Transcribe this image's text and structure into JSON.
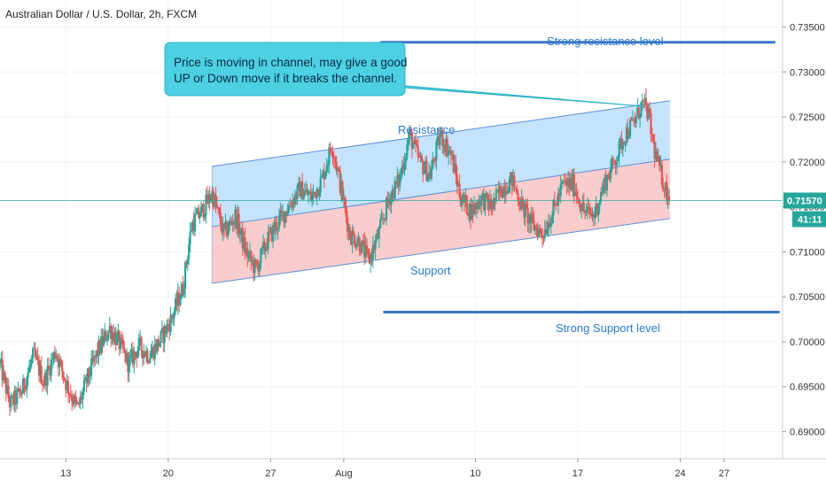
{
  "header": {
    "title": "Australian Dollar / U.S. Dollar, 2h, FXCM"
  },
  "chart_data": {
    "type": "candlestick",
    "title": "Australian Dollar / U.S. Dollar, 2h, FXCM",
    "x_ticks": [
      {
        "label": "13",
        "day": 13
      },
      {
        "label": "20",
        "day": 20
      },
      {
        "label": "27",
        "day": 27
      },
      {
        "label": "Aug",
        "day": 32
      },
      {
        "label": "10",
        "day": 41
      },
      {
        "label": "17",
        "day": 48
      },
      {
        "label": "24",
        "day": 55
      },
      {
        "label": "27",
        "day": 58
      }
    ],
    "xlim": [
      8.5,
      62
    ],
    "ylim": [
      0.687,
      0.738
    ],
    "y_ticks": [
      "0.73500",
      "0.73000",
      "0.72500",
      "0.72000",
      "0.71500",
      "0.71000",
      "0.70500",
      "0.70000",
      "0.69500",
      "0.69000"
    ],
    "y_tick_values": [
      0.735,
      0.73,
      0.725,
      0.72,
      0.715,
      0.71,
      0.705,
      0.7,
      0.695,
      0.69
    ],
    "grid": true,
    "current_price": {
      "label": "0.71570",
      "value": 0.7157,
      "countdown": "41:11"
    },
    "price_path": [
      [
        8.5,
        0.6975
      ],
      [
        9.2,
        0.693
      ],
      [
        10.0,
        0.6945
      ],
      [
        10.8,
        0.6985
      ],
      [
        11.5,
        0.6955
      ],
      [
        12.3,
        0.699
      ],
      [
        13.0,
        0.6955
      ],
      [
        13.8,
        0.6925
      ],
      [
        14.5,
        0.696
      ],
      [
        15.2,
        0.699
      ],
      [
        16.0,
        0.7015
      ],
      [
        16.6,
        0.7
      ],
      [
        17.3,
        0.6975
      ],
      [
        18.0,
        0.6995
      ],
      [
        18.7,
        0.6985
      ],
      [
        19.4,
        0.7
      ],
      [
        20.2,
        0.7025
      ],
      [
        21.0,
        0.706
      ],
      [
        21.6,
        0.713
      ],
      [
        22.3,
        0.7145
      ],
      [
        23.0,
        0.7165
      ],
      [
        23.8,
        0.712
      ],
      [
        24.6,
        0.714
      ],
      [
        25.3,
        0.71
      ],
      [
        26.0,
        0.708
      ],
      [
        26.7,
        0.711
      ],
      [
        27.4,
        0.713
      ],
      [
        28.2,
        0.715
      ],
      [
        29.0,
        0.717
      ],
      [
        29.8,
        0.716
      ],
      [
        30.5,
        0.718
      ],
      [
        31.2,
        0.722
      ],
      [
        31.7,
        0.718
      ],
      [
        32.4,
        0.712
      ],
      [
        33.1,
        0.711
      ],
      [
        33.7,
        0.709
      ],
      [
        34.4,
        0.712
      ],
      [
        35.1,
        0.716
      ],
      [
        35.8,
        0.718
      ],
      [
        36.5,
        0.723
      ],
      [
        37.2,
        0.72
      ],
      [
        37.9,
        0.7185
      ],
      [
        38.6,
        0.723
      ],
      [
        39.3,
        0.721
      ],
      [
        40.0,
        0.716
      ],
      [
        40.7,
        0.7145
      ],
      [
        41.4,
        0.716
      ],
      [
        42.1,
        0.715
      ],
      [
        42.8,
        0.717
      ],
      [
        43.5,
        0.718
      ],
      [
        44.2,
        0.715
      ],
      [
        44.9,
        0.713
      ],
      [
        45.6,
        0.712
      ],
      [
        46.3,
        0.7145
      ],
      [
        47.0,
        0.7175
      ],
      [
        47.7,
        0.7175
      ],
      [
        48.4,
        0.7145
      ],
      [
        49.1,
        0.714
      ],
      [
        49.8,
        0.7175
      ],
      [
        50.5,
        0.72
      ],
      [
        51.2,
        0.723
      ],
      [
        51.9,
        0.7245
      ],
      [
        52.4,
        0.7265
      ],
      [
        52.8,
        0.7255
      ],
      [
        53.2,
        0.7215
      ],
      [
        53.6,
        0.719
      ],
      [
        54.0,
        0.717
      ],
      [
        54.3,
        0.7157
      ]
    ],
    "channel": {
      "upper": [
        [
          23.0,
          0.7195
        ],
        [
          54.3,
          0.7268
        ]
      ],
      "middle": [
        [
          23.0,
          0.7128
        ],
        [
          54.3,
          0.7203
        ]
      ],
      "lower": [
        [
          23.0,
          0.7065
        ],
        [
          54.3,
          0.7137
        ]
      ]
    },
    "levels": [
      {
        "name": "resistance",
        "value": 0.7333,
        "x_range": [
          34.5,
          61.5
        ]
      },
      {
        "name": "support",
        "value": 0.7033,
        "x_range": [
          34.7,
          61.8
        ]
      }
    ],
    "annotations": {
      "resistance": "Resistance",
      "support": "Support",
      "strong_resistance": "Strong resistance level",
      "strong_support": "Strong Support level",
      "callout_line1": "Price is moving in channel, may give a good",
      "callout_line2": "UP or Down move if it breaks the channel."
    },
    "colors": {
      "up": "#26a69a",
      "down": "#ef5350",
      "channel_upper_fill": "#bbdefb",
      "channel_lower_fill": "#f8c4c4",
      "channel_line": "#5b8fd6",
      "level_line": "#3d74c8",
      "callout_fill": "#4dd0e1",
      "price_line": "#26a69a"
    }
  }
}
